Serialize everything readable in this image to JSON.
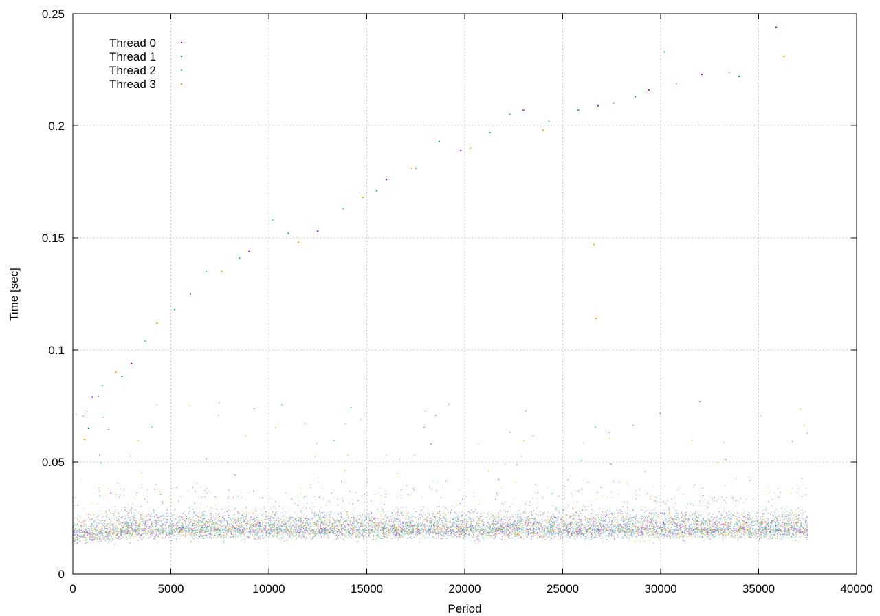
{
  "chart_data": {
    "type": "scatter",
    "title": "",
    "xlabel": "Period",
    "ylabel": "Time [sec]",
    "xlim": [
      0,
      40000
    ],
    "ylim": [
      0,
      0.25
    ],
    "xticks": [
      0,
      5000,
      10000,
      15000,
      20000,
      25000,
      30000,
      35000,
      40000
    ],
    "xtick_labels": [
      "0",
      "5000",
      "10000",
      "15000",
      "20000",
      "25000",
      "30000",
      "35000",
      "40000"
    ],
    "yticks": [
      0,
      0.05,
      0.1,
      0.15,
      0.2,
      0.25
    ],
    "ytick_labels": [
      "0",
      "0.05",
      "0.1",
      "0.15",
      "0.2",
      "0.25"
    ],
    "grid": true,
    "legend_position": "top-left",
    "point_range": [
      0,
      37500
    ],
    "series": [
      {
        "name": "Thread 0",
        "color": "#9400d3",
        "points": [
          [
            1000,
            0.079
          ],
          [
            3000,
            0.094
          ],
          [
            6000,
            0.125
          ],
          [
            9000,
            0.144
          ],
          [
            12500,
            0.153
          ],
          [
            16000,
            0.176
          ],
          [
            19800,
            0.189
          ],
          [
            23000,
            0.207
          ],
          [
            26800,
            0.209
          ],
          [
            29400,
            0.216
          ],
          [
            32100,
            0.223
          ],
          [
            35900,
            0.244
          ]
        ]
      },
      {
        "name": "Thread 1",
        "color": "#009e73",
        "points": [
          [
            800,
            0.065
          ],
          [
            2500,
            0.088
          ],
          [
            5200,
            0.118
          ],
          [
            8500,
            0.141
          ],
          [
            11000,
            0.152
          ],
          [
            15500,
            0.171
          ],
          [
            18700,
            0.193
          ],
          [
            22300,
            0.205
          ],
          [
            25800,
            0.207
          ],
          [
            28700,
            0.213
          ],
          [
            30200,
            0.233
          ],
          [
            34000,
            0.222
          ]
        ]
      },
      {
        "name": "Thread 2",
        "color": "#56b4e9",
        "points": [
          [
            1500,
            0.084
          ],
          [
            3700,
            0.104
          ],
          [
            6800,
            0.135
          ],
          [
            10200,
            0.158
          ],
          [
            13800,
            0.163
          ],
          [
            17500,
            0.181
          ],
          [
            21300,
            0.197
          ],
          [
            24300,
            0.202
          ],
          [
            27600,
            0.21
          ],
          [
            30800,
            0.219
          ],
          [
            33500,
            0.224
          ]
        ]
      },
      {
        "name": "Thread 3",
        "color": "#e69f00",
        "points": [
          [
            600,
            0.06
          ],
          [
            2200,
            0.09
          ],
          [
            4300,
            0.112
          ],
          [
            7600,
            0.135
          ],
          [
            11500,
            0.148
          ],
          [
            14800,
            0.168
          ],
          [
            17300,
            0.181
          ],
          [
            20300,
            0.19
          ],
          [
            24000,
            0.198
          ],
          [
            26600,
            0.147
          ],
          [
            26700,
            0.114
          ],
          [
            36300,
            0.231
          ]
        ]
      }
    ]
  }
}
